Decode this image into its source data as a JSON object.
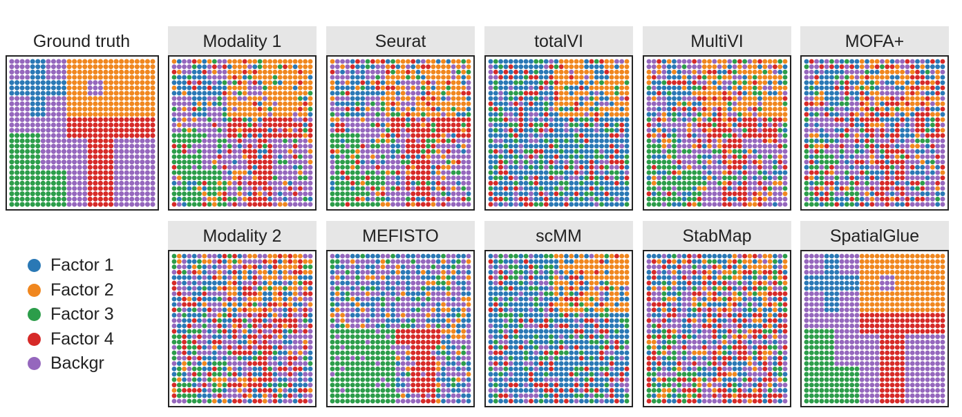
{
  "colors": {
    "factor1": "#2a78b5",
    "factor2": "#f0871f",
    "factor3": "#2c9d4a",
    "factor4": "#d62a28",
    "background": "#9567bd",
    "header_fill": "#e6e6e6",
    "frame": "#222222"
  },
  "legend": [
    {
      "key": "factor1",
      "label": "Factor 1"
    },
    {
      "key": "factor2",
      "label": "Factor 2"
    },
    {
      "key": "factor3",
      "label": "Factor 3"
    },
    {
      "key": "factor4",
      "label": "Factor 4"
    },
    {
      "key": "background",
      "label": "Backgr"
    }
  ],
  "chart_data": {
    "type": "heatmap",
    "grid_size": 28,
    "panels": [
      {
        "title": "Ground truth",
        "method": "ground_truth",
        "noise": 0.0,
        "seed": 1
      },
      {
        "title": "Modality 1",
        "method": "modality1",
        "noise": 0.38,
        "seed": 11
      },
      {
        "title": "Seurat",
        "method": "seurat",
        "noise": 0.45,
        "seed": 23
      },
      {
        "title": "totalVI",
        "method": "totalvi",
        "noise": 0.6,
        "seed": 37
      },
      {
        "title": "MultiVI",
        "method": "multivi",
        "noise": 0.5,
        "seed": 41
      },
      {
        "title": "MOFA+",
        "method": "mofa",
        "noise": 0.65,
        "seed": 53
      },
      {
        "title": "Modality 2",
        "method": "modality2",
        "noise": 0.7,
        "seed": 61
      },
      {
        "title": "MEFISTO",
        "method": "mefisto",
        "noise": 0.35,
        "seed": 71
      },
      {
        "title": "scMM",
        "method": "scmm",
        "noise": 0.5,
        "seed": 83
      },
      {
        "title": "StabMap",
        "method": "stabmap",
        "noise": 0.75,
        "seed": 97
      },
      {
        "title": "SpatialGlue",
        "method": "spatialglue",
        "noise": 0.0,
        "seed": 101
      }
    ]
  }
}
